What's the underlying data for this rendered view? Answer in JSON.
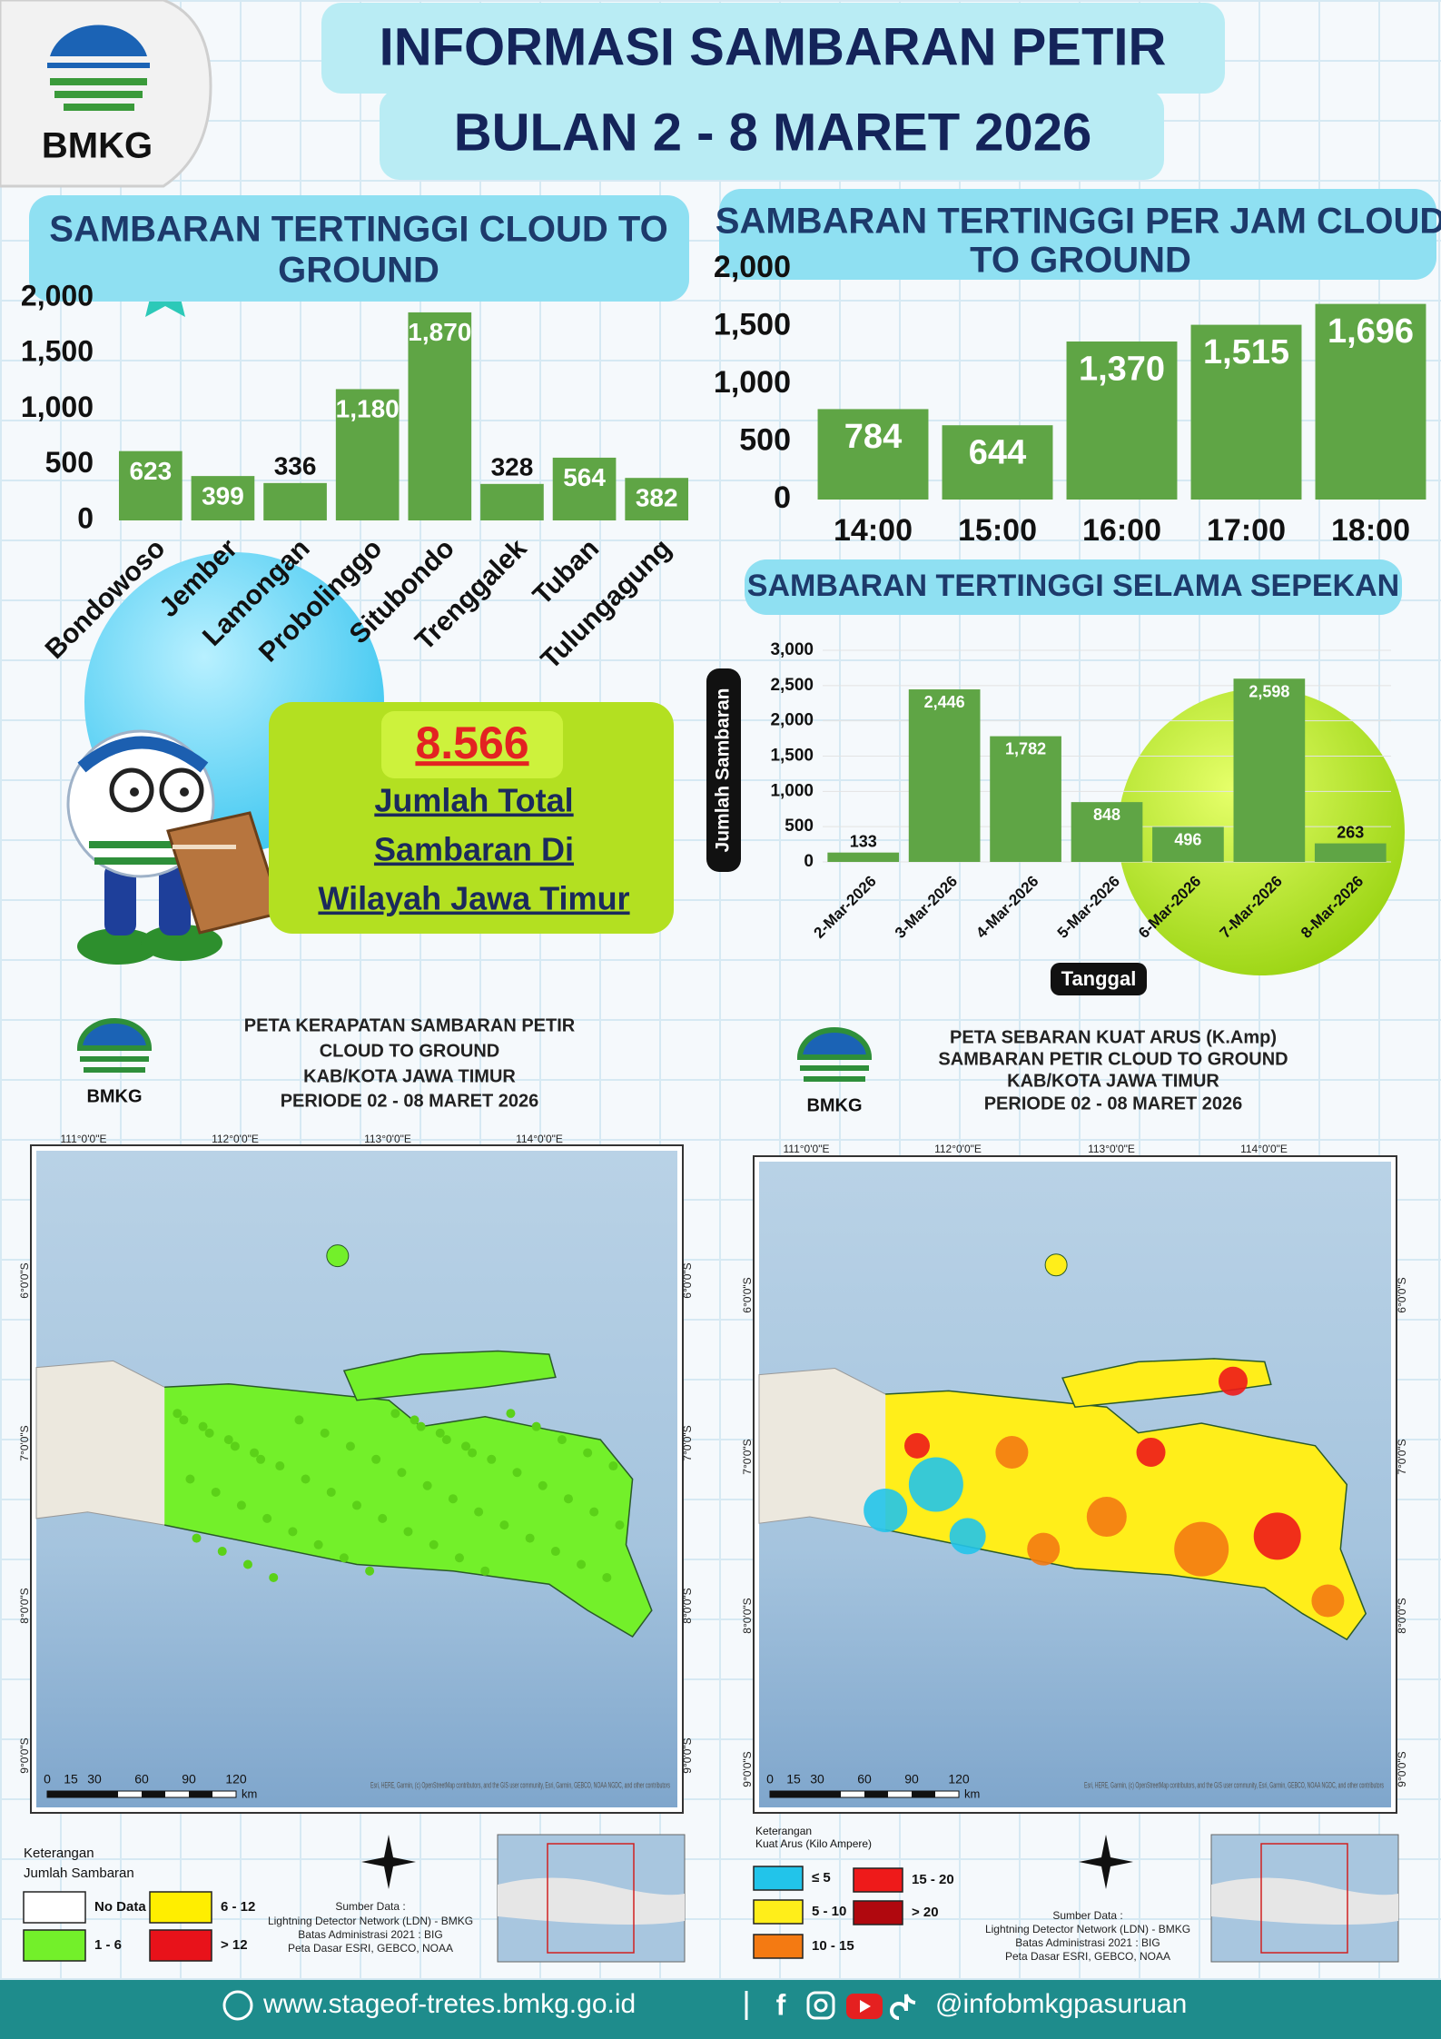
{
  "header": {
    "logo": "BMKG",
    "title_lines": [
      "INFORMASI SAMBARAN PETIR",
      "BULAN 2 - 8 MARET 2026"
    ]
  },
  "chart_data": [
    {
      "type": "bar",
      "title_lines": [
        "SAMBARAN TERTINGGI  CLOUD TO",
        "GROUND"
      ],
      "categories": [
        "Bondowoso",
        "Jember",
        "Lamongan",
        "Probolinggo",
        "Situbondo",
        "Trenggalek",
        "Tuban",
        "Tulungagung"
      ],
      "values": [
        623,
        399,
        336,
        1180,
        1870,
        328,
        564,
        382
      ],
      "value_labels": [
        "623",
        "399",
        "336",
        "1,180",
        "1,870",
        "328",
        "564",
        "382"
      ],
      "color": "#5fa545",
      "ylim": [
        0,
        2000
      ],
      "yticks": [
        0,
        500,
        {
          "value": 1000,
          "label": "1,000"
        },
        {
          "value": 1500,
          "label": "1,500"
        },
        {
          "value": 2000,
          "label": "2,000"
        }
      ],
      "grid": false
    },
    {
      "type": "bar",
      "title_lines": [
        "SAMBARAN TERTINGGI PER JAM CLOUD",
        "TO GROUND"
      ],
      "categories": [
        "14:00",
        "15:00",
        "16:00",
        "17:00",
        "18:00"
      ],
      "values": [
        784,
        644,
        1370,
        1515,
        1696
      ],
      "value_labels": [
        "784",
        "644",
        "1,370",
        "1,515",
        "1,696"
      ],
      "color": "#5fa545",
      "ylim": [
        0,
        2000
      ],
      "yticks": [
        0,
        500,
        {
          "value": 1000,
          "label": "1,000"
        },
        {
          "value": 1500,
          "label": "1,500"
        },
        {
          "value": 2000,
          "label": "2,000"
        }
      ],
      "grid": false
    },
    {
      "type": "bar",
      "title_lines": [
        "SAMBARAN TERTINGGI SELAMA SEPEKAN"
      ],
      "y_label": "Jumlah Sambaran",
      "x_label": "Tanggal",
      "categories": [
        "2-Mar-2026",
        "3-Mar-2026",
        "4-Mar-2026",
        "5-Mar-2026",
        "6-Mar-2026",
        "7-Mar-2026",
        "8-Mar-2026"
      ],
      "values": [
        133,
        2446,
        1782,
        848,
        496,
        2598,
        263
      ],
      "value_labels": [
        "133",
        "2,446",
        "1,782",
        "848",
        "496",
        "2,598",
        "263"
      ],
      "color": "#5fa545",
      "ylim": [
        0,
        3000
      ],
      "yticks": [
        0,
        500,
        {
          "value": 1000,
          "label": "1,000"
        },
        {
          "value": 1500,
          "label": "1,500"
        },
        {
          "value": 2000,
          "label": "2,000"
        },
        {
          "value": 2500,
          "label": "2,500"
        },
        {
          "value": 3000,
          "label": "3,000"
        }
      ],
      "grid": true
    }
  ],
  "total": {
    "value": "8.566",
    "lines": [
      "Jumlah Total",
      "Sambaran Di",
      "Wilayah Jawa Timur"
    ]
  },
  "maps": [
    {
      "logo": "BMKG",
      "title_lines": [
        "PETA KERAPATAN SAMBARAN PETIR",
        "CLOUD TO GROUND",
        "KAB/KOTA JAWA TIMUR",
        "PERIODE 02 - 08 MARET 2026"
      ],
      "lon_labels": [
        "111°0'0\"E",
        "112°0'0\"E",
        "113°0'0\"E",
        "114°0'0\"E"
      ],
      "lat_labels": [
        "6°0'0\"S",
        "7°0'0\"S",
        "8°0'0\"S",
        "9°0'0\"S"
      ],
      "scale_labels": [
        "0",
        "15",
        "30",
        "60",
        "90",
        "120"
      ],
      "scale_unit": "km",
      "attribution": "Esri, HERE, Garmin, (c) OpenStreetMap contributors, and the GIS user community, Esri, Garmin, GEBCO, NOAA NGDC, and other contributors",
      "legend_title": "Keterangan",
      "legend_subtitle": "Jumlah Sambaran",
      "legend_items": [
        {
          "label": "No Data",
          "color": "#ffffff"
        },
        {
          "label": "1 - 6",
          "color": "#73f02a"
        },
        {
          "label": "6 - 12",
          "color": "#ffee00"
        },
        {
          "label": "> 12",
          "color": "#e8121a"
        }
      ],
      "sources": [
        "Sumber Data :",
        "Lightning Detector Network (LDN) - BMKG",
        "Batas Administrasi 2021  : BIG",
        "Peta Dasar ESRI, GEBCO, NOAA"
      ]
    },
    {
      "logo": "BMKG",
      "title_lines": [
        "PETA SEBARAN KUAT ARUS (K.Amp)",
        "SAMBARAN PETIR CLOUD TO GROUND",
        "KAB/KOTA JAWA TIMUR",
        "PERIODE 02 - 08 MARET 2026"
      ],
      "lon_labels": [
        "111°0'0\"E",
        "112°0'0\"E",
        "113°0'0\"E",
        "114°0'0\"E"
      ],
      "lat_labels": [
        "6°0'0\"S",
        "7°0'0\"S",
        "8°0'0\"S",
        "9°0'0\"S"
      ],
      "scale_labels": [
        "0",
        "15",
        "30",
        "60",
        "90",
        "120"
      ],
      "scale_unit": "km",
      "attribution": "Esri, HERE, Garmin, (c) OpenStreetMap contributors, and the GIS user community, Esri, Garmin, GEBCO, NOAA NGDC, and other contributors",
      "legend_title": "Keterangan",
      "legend_subtitle": "Kuat Arus (Kilo Ampere)",
      "legend_items": [
        {
          "label": "≤ 5",
          "color": "#22c4ea"
        },
        {
          "label": "5 - 10",
          "color": "#ffee1a"
        },
        {
          "label": "10 - 15",
          "color": "#f47a12"
        },
        {
          "label": "15 - 20",
          "color": "#ee1a1a"
        },
        {
          "label": "> 20",
          "color": "#b0080e"
        }
      ],
      "sources": [
        "Sumber Data :",
        "Lightning Detector Network (LDN) - BMKG",
        "Batas Administrasi 2021  : BIG",
        "Peta Dasar ESRI, GEBCO, NOAA"
      ]
    }
  ],
  "footer": {
    "website": "www.stageof-tretes.bmkg.go.id",
    "social": "@infobmkgpasuruan"
  }
}
